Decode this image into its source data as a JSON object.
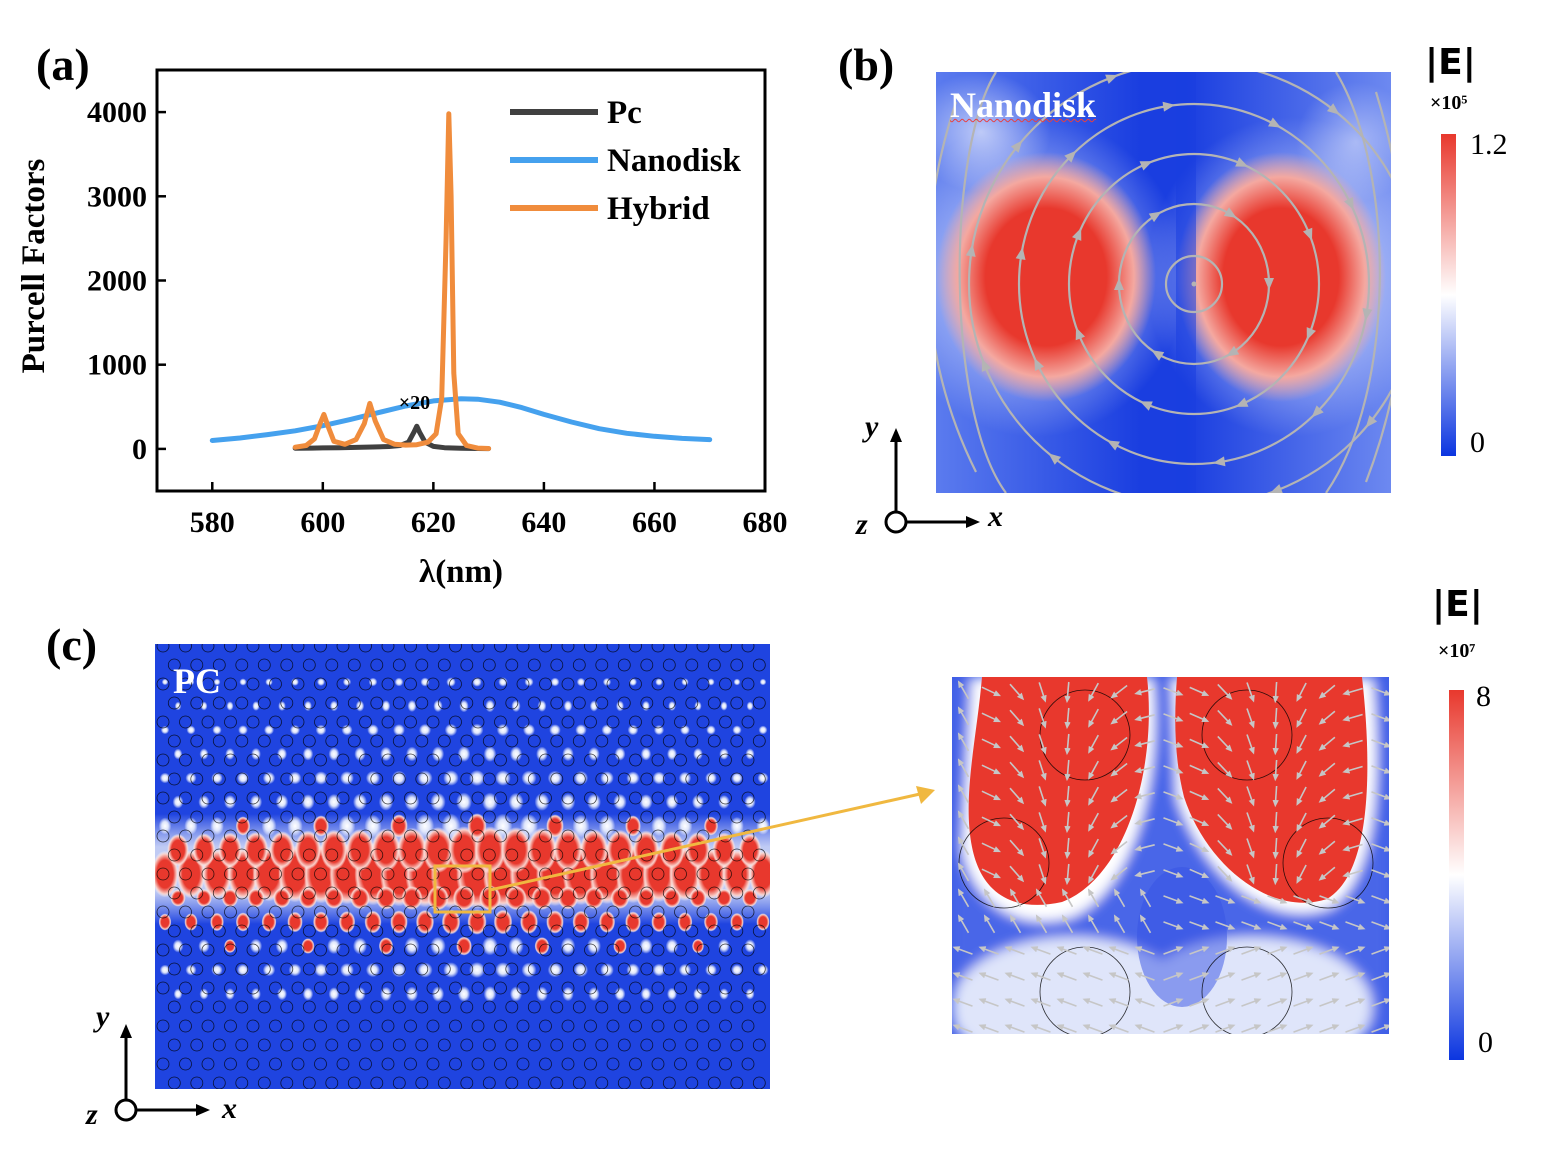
{
  "panels": {
    "a": {
      "label": "(a)"
    },
    "b": {
      "label": "(b)",
      "map_title": "Nanodisk"
    },
    "c": {
      "label": "(c)",
      "map_title": "PC"
    }
  },
  "colorbars": {
    "b": {
      "title": "|E|",
      "multiplier": "×10⁵",
      "max_label": "1.2",
      "min_label": "0",
      "color_high": "#e8382d",
      "color_mid": "#ffffff",
      "color_low": "#0b35e0"
    },
    "c": {
      "title": "|E|",
      "multiplier": "×10⁷",
      "max_label": "8",
      "min_label": "0",
      "color_high": "#e8382d",
      "color_mid": "#ffffff",
      "color_low": "#0b35e0"
    }
  },
  "axes_indicators": {
    "b": {
      "x": "x",
      "y": "y",
      "z": "z"
    },
    "c": {
      "x": "x",
      "y": "y",
      "z": "z"
    }
  },
  "colors": {
    "map_blue": "#1f44e0",
    "field_red": "#e8382d",
    "streamline": "#b4b4b4",
    "zoom_box": "#f0b840"
  },
  "chart_data": {
    "type": "line",
    "title": "",
    "xlabel": "λ(nm)",
    "ylabel": "Purcell Factors",
    "xlim": [
      570,
      680
    ],
    "ylim": [
      -500,
      4500
    ],
    "xticks": [
      580,
      600,
      620,
      640,
      660,
      680
    ],
    "yticks": [
      0,
      1000,
      2000,
      3000,
      4000
    ],
    "legend_position": "top-right",
    "annotations": [
      {
        "text": "×20",
        "x": 617,
        "y": 330
      }
    ],
    "series": [
      {
        "name": "Pc",
        "color": "#404040",
        "x": [
          595,
          598,
          600,
          603,
          606,
          609,
          612,
          614,
          615.5,
          616.5,
          617,
          617.5,
          618.5,
          620,
          622,
          625,
          628,
          630
        ],
        "y": [
          8,
          10,
          12,
          14,
          18,
          22,
          28,
          40,
          80,
          200,
          270,
          200,
          80,
          30,
          14,
          8,
          5,
          4
        ]
      },
      {
        "name": "Nanodisk",
        "color": "#45a1ee",
        "x": [
          580,
          585,
          590,
          595,
          600,
          605,
          610,
          615,
          620,
          625,
          628,
          632,
          636,
          640,
          645,
          650,
          655,
          660,
          665,
          670
        ],
        "y": [
          100,
          130,
          170,
          215,
          275,
          350,
          430,
          510,
          570,
          595,
          590,
          555,
          490,
          410,
          320,
          240,
          185,
          150,
          125,
          110
        ]
      },
      {
        "name": "Hybrid",
        "color": "#f08c3c",
        "x": [
          595,
          597,
          598.5,
          599.5,
          600.2,
          601,
          602,
          604,
          606,
          607.5,
          608.5,
          609.5,
          611,
          613,
          615,
          617,
          619,
          620.5,
          621.5,
          622.3,
          622.8,
          623.2,
          623.7,
          624.5,
          626,
          628,
          630
        ],
        "y": [
          20,
          40,
          120,
          300,
          410,
          260,
          90,
          55,
          110,
          300,
          540,
          330,
          110,
          55,
          45,
          50,
          80,
          180,
          600,
          2500,
          3980,
          3000,
          900,
          180,
          40,
          10,
          5
        ]
      }
    ]
  }
}
